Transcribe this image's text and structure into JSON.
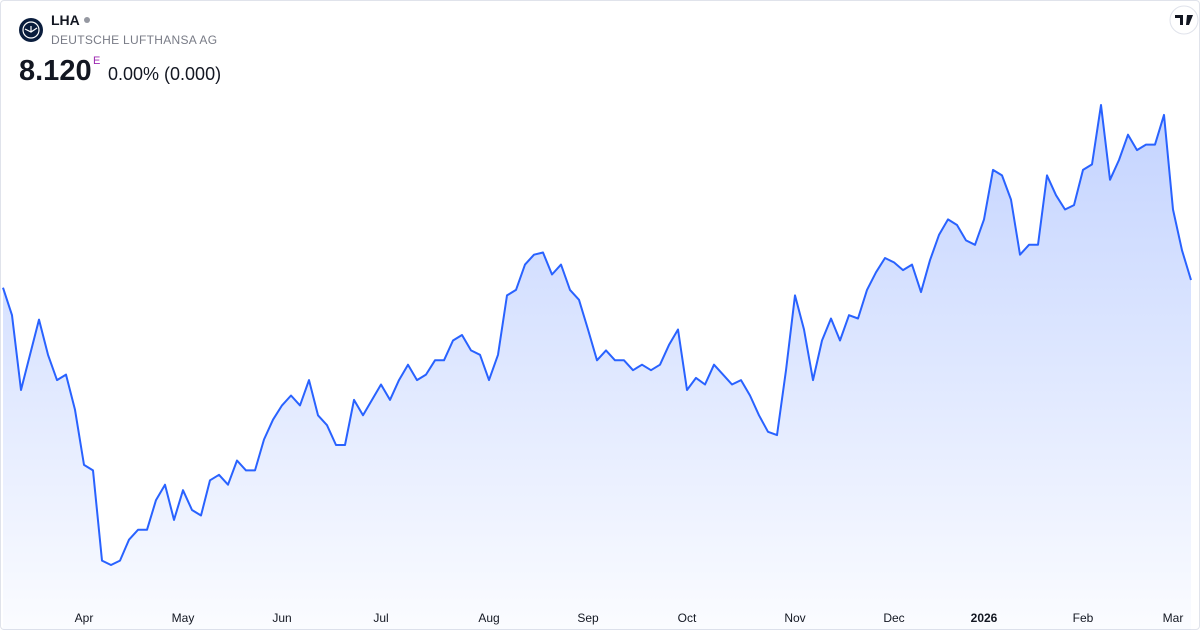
{
  "header": {
    "symbol": "LHA",
    "name": "DEUTSCHE LUFTHANSA AG",
    "price": "8.120",
    "flag": "E",
    "change": "0.00% (0.000)"
  },
  "chart_data": {
    "type": "area",
    "color": "#2962ff",
    "categories": [
      null,
      null,
      null,
      null,
      null,
      null,
      null,
      null,
      null,
      "Apr",
      null,
      null,
      null,
      null,
      null,
      null,
      null,
      null,
      null,
      null,
      "May",
      null,
      null,
      null,
      null,
      null,
      null,
      null,
      null,
      null,
      null,
      "Jun",
      null,
      null,
      null,
      null,
      null,
      null,
      null,
      null,
      null,
      null,
      "Jul",
      null,
      null,
      null,
      null,
      null,
      null,
      null,
      null,
      null,
      null,
      null,
      "Aug",
      null,
      null,
      null,
      null,
      null,
      null,
      null,
      null,
      null,
      null,
      "Sep",
      null,
      null,
      null,
      null,
      null,
      null,
      null,
      null,
      null,
      null,
      "Oct",
      null,
      null,
      null,
      null,
      null,
      null,
      null,
      null,
      null,
      null,
      null,
      "Nov",
      null,
      null,
      null,
      null,
      null,
      null,
      null,
      null,
      null,
      null,
      "Dec",
      null,
      null,
      null,
      null,
      null,
      null,
      null,
      null,
      null,
      "2026",
      null,
      null,
      null,
      null,
      null,
      null,
      null,
      null,
      null,
      null,
      "Feb",
      null,
      null,
      null,
      null,
      null,
      null,
      null,
      null,
      null,
      "Mar",
      null,
      null
    ],
    "values": [
      8.05,
      7.8,
      7.12,
      7.44,
      7.76,
      7.44,
      7.21,
      7.26,
      6.94,
      6.44,
      6.39,
      5.57,
      5.53,
      5.57,
      5.76,
      5.85,
      5.85,
      6.12,
      6.26,
      5.94,
      6.21,
      6.03,
      5.98,
      6.3,
      6.35,
      6.26,
      6.48,
      6.39,
      6.39,
      6.67,
      6.85,
      6.98,
      7.07,
      6.98,
      7.21,
      6.89,
      6.8,
      6.62,
      6.62,
      7.03,
      6.89,
      7.03,
      7.17,
      7.03,
      7.21,
      7.35,
      7.21,
      7.26,
      7.39,
      7.39,
      7.57,
      7.62,
      7.48,
      7.44,
      7.21,
      7.44,
      7.98,
      8.03,
      8.26,
      8.35,
      8.37,
      8.17,
      8.26,
      8.03,
      7.94,
      7.67,
      7.39,
      7.48,
      7.39,
      7.39,
      7.3,
      7.35,
      7.3,
      7.35,
      7.53,
      7.67,
      7.12,
      7.23,
      7.17,
      7.35,
      7.26,
      7.17,
      7.21,
      7.07,
      6.89,
      6.74,
      6.71,
      7.3,
      7.98,
      7.67,
      7.21,
      7.57,
      7.77,
      7.57,
      7.8,
      7.77,
      8.03,
      8.19,
      8.32,
      8.28,
      8.21,
      8.26,
      8.01,
      8.3,
      8.53,
      8.67,
      8.62,
      8.48,
      8.44,
      8.67,
      9.12,
      9.07,
      8.85,
      8.35,
      8.44,
      8.44,
      9.07,
      8.89,
      8.76,
      8.8,
      9.12,
      9.17,
      9.71,
      9.03,
      9.21,
      9.44,
      9.3,
      9.35,
      9.35,
      9.62,
      8.76,
      8.39,
      8.12
    ]
  }
}
